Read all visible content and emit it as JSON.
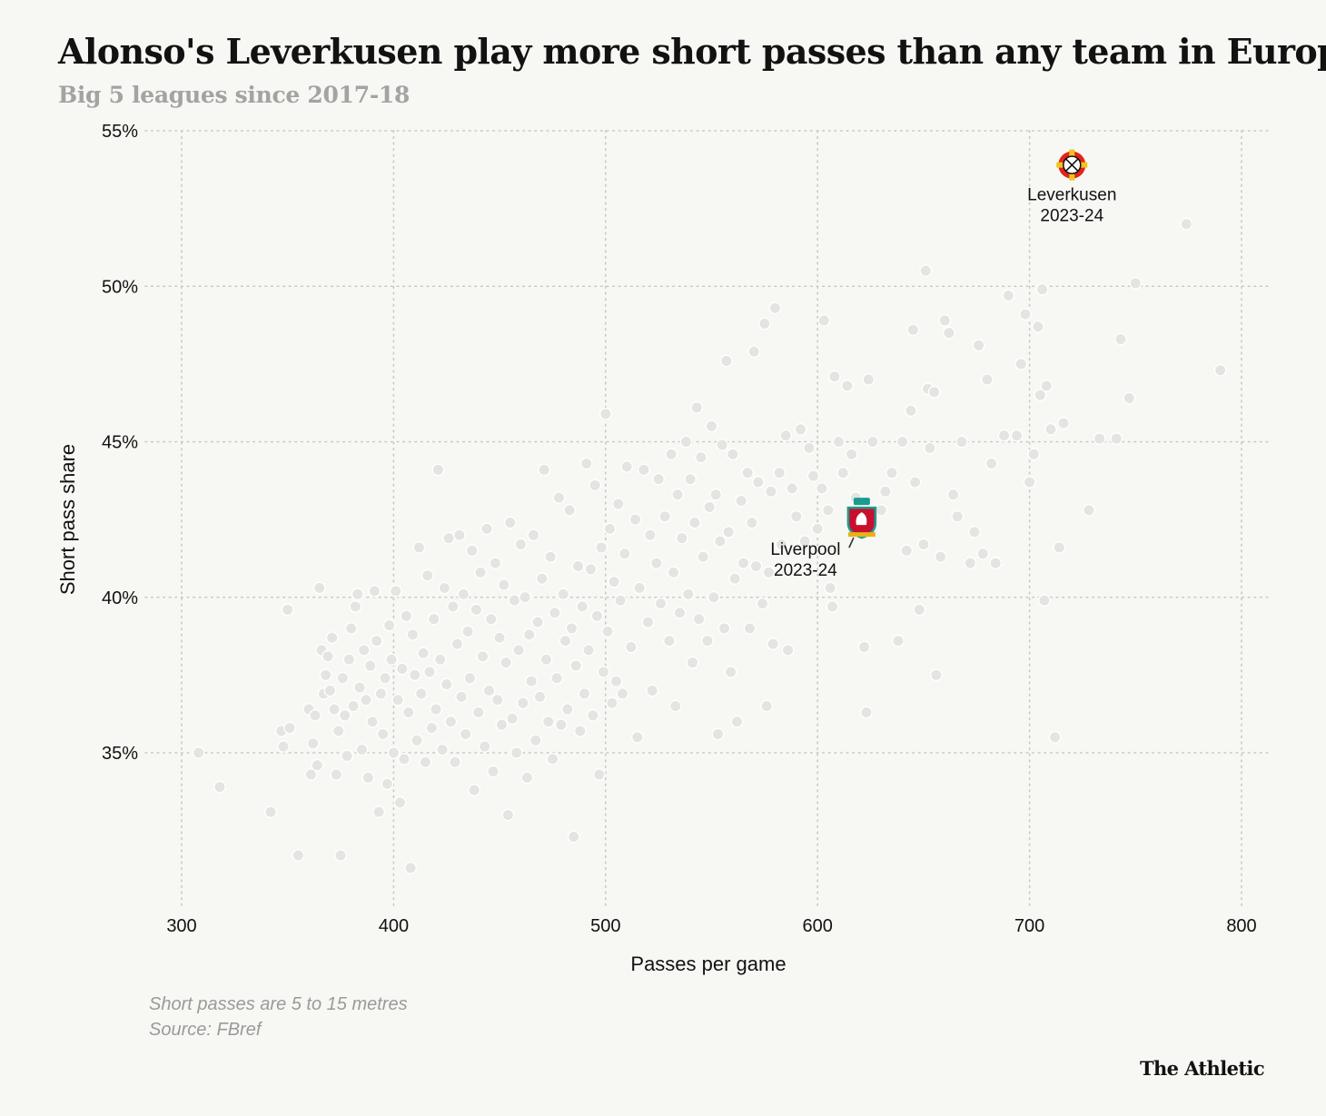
{
  "title": "Alonso's Leverkusen play more short passes than any team in Europe",
  "subtitle": "Big 5 leagues since 2017-18",
  "notes": [
    "Short passes are 5 to 15 metres",
    "Source: FBref"
  ],
  "brand": "The Athletic",
  "colors": {
    "background": "#f7f7f4",
    "dot": "#e4e4e2",
    "grid": "#c8c8c4",
    "text": "#121212",
    "muted": "#a3a3a3"
  },
  "chart_data": {
    "type": "scatter",
    "xlabel": "Passes per game",
    "ylabel": "Short pass share",
    "xlim": [
      290,
      810
    ],
    "ylim": [
      30.5,
      55
    ],
    "xticks": [
      300,
      400,
      500,
      600,
      700,
      800
    ],
    "yticks": [
      35,
      40,
      45,
      50,
      55
    ],
    "ytick_format": "%",
    "grid": true,
    "highlights": [
      {
        "label": [
          "Leverkusen",
          "2023-24"
        ],
        "x": 720,
        "y": 53.9,
        "icon": "leverkusen-crest-icon"
      },
      {
        "label": [
          "Liverpool",
          "2023-24"
        ],
        "x": 620,
        "y": 42.5,
        "icon": "liverpool-crest-icon"
      }
    ],
    "points": [
      [
        308,
        35.0
      ],
      [
        318,
        33.9
      ],
      [
        342,
        33.1
      ],
      [
        347,
        35.7
      ],
      [
        348,
        35.2
      ],
      [
        350,
        39.6
      ],
      [
        351,
        35.8
      ],
      [
        355,
        31.7
      ],
      [
        360,
        36.4
      ],
      [
        361,
        34.3
      ],
      [
        362,
        35.3
      ],
      [
        363,
        36.2
      ],
      [
        364,
        34.6
      ],
      [
        365,
        40.3
      ],
      [
        366,
        38.3
      ],
      [
        367,
        36.9
      ],
      [
        368,
        37.5
      ],
      [
        369,
        38.1
      ],
      [
        370,
        37.0
      ],
      [
        371,
        38.7
      ],
      [
        372,
        36.4
      ],
      [
        373,
        34.3
      ],
      [
        374,
        35.7
      ],
      [
        375,
        31.7
      ],
      [
        376,
        37.4
      ],
      [
        377,
        36.2
      ],
      [
        378,
        34.9
      ],
      [
        379,
        38.0
      ],
      [
        380,
        39.0
      ],
      [
        381,
        36.5
      ],
      [
        382,
        39.7
      ],
      [
        383,
        40.1
      ],
      [
        384,
        37.1
      ],
      [
        385,
        35.1
      ],
      [
        386,
        38.3
      ],
      [
        387,
        36.7
      ],
      [
        388,
        34.2
      ],
      [
        389,
        37.8
      ],
      [
        390,
        36.0
      ],
      [
        391,
        40.2
      ],
      [
        392,
        38.6
      ],
      [
        393,
        33.1
      ],
      [
        394,
        36.9
      ],
      [
        395,
        35.6
      ],
      [
        396,
        37.4
      ],
      [
        397,
        34.0
      ],
      [
        398,
        39.1
      ],
      [
        399,
        38.0
      ],
      [
        400,
        35.0
      ],
      [
        401,
        40.2
      ],
      [
        402,
        36.7
      ],
      [
        403,
        33.4
      ],
      [
        404,
        37.7
      ],
      [
        405,
        34.8
      ],
      [
        406,
        39.4
      ],
      [
        407,
        36.3
      ],
      [
        408,
        31.3
      ],
      [
        409,
        38.8
      ],
      [
        410,
        37.5
      ],
      [
        411,
        35.4
      ],
      [
        412,
        41.6
      ],
      [
        413,
        36.9
      ],
      [
        414,
        38.2
      ],
      [
        415,
        34.7
      ],
      [
        416,
        40.7
      ],
      [
        417,
        37.6
      ],
      [
        418,
        35.8
      ],
      [
        419,
        39.3
      ],
      [
        420,
        36.4
      ],
      [
        421,
        44.1
      ],
      [
        422,
        38.0
      ],
      [
        423,
        35.1
      ],
      [
        424,
        40.3
      ],
      [
        425,
        37.2
      ],
      [
        426,
        41.9
      ],
      [
        427,
        36.0
      ],
      [
        428,
        39.7
      ],
      [
        429,
        34.7
      ],
      [
        430,
        38.5
      ],
      [
        431,
        42.0
      ],
      [
        432,
        36.8
      ],
      [
        433,
        40.1
      ],
      [
        434,
        35.6
      ],
      [
        435,
        38.9
      ],
      [
        436,
        37.4
      ],
      [
        437,
        41.5
      ],
      [
        438,
        33.8
      ],
      [
        439,
        39.6
      ],
      [
        440,
        36.3
      ],
      [
        441,
        40.8
      ],
      [
        442,
        38.1
      ],
      [
        443,
        35.2
      ],
      [
        444,
        42.2
      ],
      [
        445,
        37.0
      ],
      [
        446,
        39.3
      ],
      [
        447,
        34.4
      ],
      [
        448,
        41.1
      ],
      [
        449,
        36.7
      ],
      [
        450,
        38.7
      ],
      [
        451,
        35.9
      ],
      [
        452,
        40.4
      ],
      [
        453,
        37.9
      ],
      [
        454,
        33.0
      ],
      [
        455,
        42.4
      ],
      [
        456,
        36.1
      ],
      [
        457,
        39.9
      ],
      [
        458,
        35.0
      ],
      [
        459,
        38.3
      ],
      [
        460,
        41.7
      ],
      [
        461,
        36.6
      ],
      [
        462,
        40.0
      ],
      [
        463,
        34.2
      ],
      [
        464,
        38.8
      ],
      [
        465,
        37.3
      ],
      [
        466,
        42.0
      ],
      [
        467,
        35.4
      ],
      [
        468,
        39.2
      ],
      [
        469,
        36.8
      ],
      [
        470,
        40.6
      ],
      [
        471,
        44.1
      ],
      [
        472,
        38.0
      ],
      [
        473,
        36.0
      ],
      [
        474,
        41.3
      ],
      [
        475,
        34.8
      ],
      [
        476,
        39.5
      ],
      [
        477,
        37.4
      ],
      [
        478,
        43.2
      ],
      [
        479,
        35.9
      ],
      [
        480,
        40.1
      ],
      [
        481,
        38.6
      ],
      [
        482,
        36.4
      ],
      [
        483,
        42.8
      ],
      [
        484,
        39.0
      ],
      [
        485,
        32.3
      ],
      [
        486,
        37.8
      ],
      [
        487,
        41.0
      ],
      [
        488,
        35.7
      ],
      [
        489,
        39.7
      ],
      [
        490,
        36.9
      ],
      [
        491,
        44.3
      ],
      [
        492,
        38.3
      ],
      [
        493,
        40.9
      ],
      [
        494,
        36.2
      ],
      [
        495,
        43.6
      ],
      [
        496,
        39.4
      ],
      [
        497,
        34.3
      ],
      [
        498,
        41.6
      ],
      [
        499,
        37.6
      ],
      [
        500,
        45.9
      ],
      [
        501,
        38.9
      ],
      [
        502,
        42.2
      ],
      [
        503,
        36.6
      ],
      [
        504,
        40.5
      ],
      [
        505,
        37.3
      ],
      [
        506,
        43.0
      ],
      [
        507,
        39.9
      ],
      [
        508,
        36.9
      ],
      [
        509,
        41.4
      ],
      [
        510,
        44.2
      ],
      [
        512,
        38.4
      ],
      [
        514,
        42.5
      ],
      [
        515,
        35.5
      ],
      [
        516,
        40.3
      ],
      [
        518,
        44.1
      ],
      [
        520,
        39.2
      ],
      [
        521,
        42.0
      ],
      [
        522,
        37.0
      ],
      [
        524,
        41.1
      ],
      [
        525,
        43.8
      ],
      [
        526,
        39.8
      ],
      [
        528,
        42.6
      ],
      [
        530,
        38.6
      ],
      [
        531,
        44.6
      ],
      [
        532,
        40.8
      ],
      [
        533,
        36.5
      ],
      [
        534,
        43.3
      ],
      [
        535,
        39.5
      ],
      [
        536,
        41.9
      ],
      [
        538,
        45.0
      ],
      [
        539,
        40.1
      ],
      [
        540,
        43.8
      ],
      [
        541,
        37.9
      ],
      [
        542,
        42.4
      ],
      [
        543,
        46.1
      ],
      [
        544,
        39.3
      ],
      [
        545,
        44.5
      ],
      [
        546,
        41.3
      ],
      [
        548,
        38.6
      ],
      [
        549,
        42.9
      ],
      [
        550,
        45.5
      ],
      [
        551,
        40.0
      ],
      [
        552,
        43.3
      ],
      [
        553,
        35.6
      ],
      [
        554,
        41.8
      ],
      [
        555,
        44.9
      ],
      [
        556,
        39.0
      ],
      [
        557,
        47.6
      ],
      [
        558,
        42.1
      ],
      [
        559,
        37.6
      ],
      [
        560,
        44.6
      ],
      [
        561,
        40.6
      ],
      [
        562,
        36.0
      ],
      [
        564,
        43.1
      ],
      [
        565,
        41.1
      ],
      [
        567,
        44.0
      ],
      [
        568,
        39.0
      ],
      [
        569,
        42.4
      ],
      [
        570,
        47.9
      ],
      [
        571,
        41.0
      ],
      [
        572,
        43.7
      ],
      [
        574,
        39.8
      ],
      [
        575,
        48.8
      ],
      [
        576,
        36.5
      ],
      [
        577,
        40.8
      ],
      [
        578,
        43.4
      ],
      [
        579,
        38.5
      ],
      [
        580,
        49.3
      ],
      [
        582,
        44.0
      ],
      [
        583,
        41.7
      ],
      [
        585,
        45.2
      ],
      [
        586,
        38.3
      ],
      [
        588,
        43.5
      ],
      [
        590,
        42.6
      ],
      [
        592,
        45.4
      ],
      [
        594,
        41.8
      ],
      [
        596,
        44.8
      ],
      [
        598,
        43.9
      ],
      [
        600,
        42.2
      ],
      [
        602,
        43.5
      ],
      [
        603,
        48.9
      ],
      [
        605,
        42.8
      ],
      [
        606,
        40.3
      ],
      [
        607,
        39.7
      ],
      [
        608,
        47.1
      ],
      [
        610,
        45.0
      ],
      [
        612,
        44.0
      ],
      [
        614,
        46.8
      ],
      [
        616,
        44.6
      ],
      [
        618,
        43.2
      ],
      [
        620,
        42.1
      ],
      [
        622,
        38.4
      ],
      [
        623,
        36.3
      ],
      [
        624,
        47.0
      ],
      [
        626,
        45.0
      ],
      [
        630,
        42.8
      ],
      [
        632,
        43.4
      ],
      [
        635,
        44.0
      ],
      [
        638,
        38.6
      ],
      [
        640,
        45.0
      ],
      [
        642,
        41.5
      ],
      [
        644,
        46.0
      ],
      [
        645,
        48.6
      ],
      [
        646,
        43.7
      ],
      [
        648,
        39.6
      ],
      [
        650,
        41.7
      ],
      [
        651,
        50.5
      ],
      [
        652,
        46.7
      ],
      [
        653,
        44.8
      ],
      [
        655,
        46.6
      ],
      [
        656,
        37.5
      ],
      [
        658,
        41.3
      ],
      [
        660,
        48.9
      ],
      [
        662,
        48.5
      ],
      [
        664,
        43.3
      ],
      [
        666,
        42.6
      ],
      [
        668,
        45.0
      ],
      [
        672,
        41.1
      ],
      [
        674,
        42.1
      ],
      [
        676,
        48.1
      ],
      [
        678,
        41.4
      ],
      [
        680,
        47.0
      ],
      [
        682,
        44.3
      ],
      [
        684,
        41.1
      ],
      [
        688,
        45.2
      ],
      [
        690,
        49.7
      ],
      [
        694,
        45.2
      ],
      [
        696,
        47.5
      ],
      [
        698,
        49.1
      ],
      [
        700,
        43.7
      ],
      [
        702,
        44.6
      ],
      [
        704,
        48.7
      ],
      [
        705,
        46.5
      ],
      [
        706,
        49.9
      ],
      [
        707,
        39.9
      ],
      [
        708,
        46.8
      ],
      [
        710,
        45.4
      ],
      [
        712,
        35.5
      ],
      [
        714,
        41.6
      ],
      [
        716,
        45.6
      ],
      [
        728,
        42.8
      ],
      [
        733,
        45.1
      ],
      [
        741,
        45.1
      ],
      [
        743,
        48.3
      ],
      [
        747,
        46.4
      ],
      [
        750,
        50.1
      ],
      [
        774,
        52.0
      ],
      [
        790,
        47.3
      ]
    ]
  }
}
